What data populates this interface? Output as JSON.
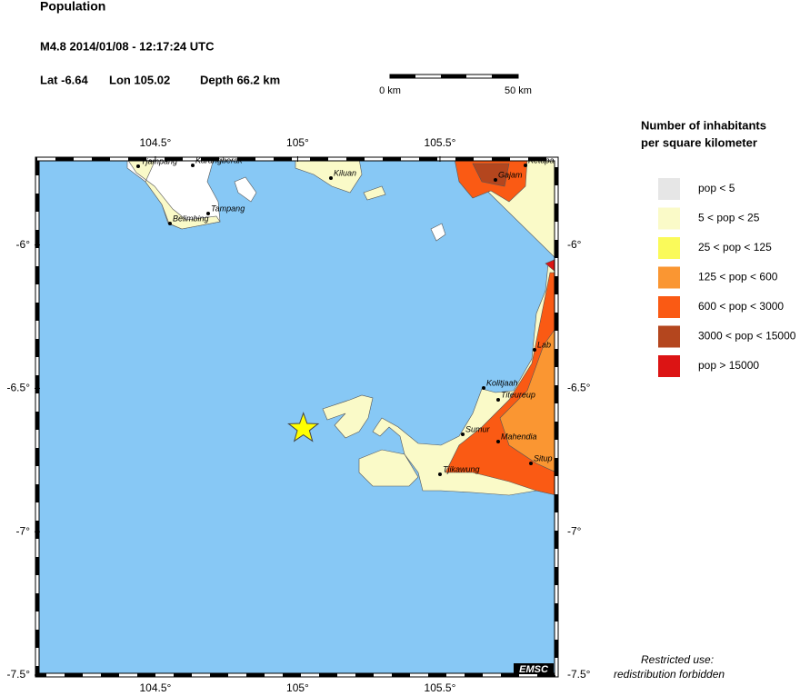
{
  "header": {
    "title": "Population",
    "event": "M4.8  2014/01/08 - 12:17:24 UTC",
    "lat": {
      "value": -6.64,
      "label": "Lat -6.64"
    },
    "lon": {
      "value": 105.02,
      "label": "Lon 105.02"
    },
    "depth": "Depth  66.2 km"
  },
  "scale": {
    "start": "0 km",
    "end": "50 km"
  },
  "map": {
    "xlim": [
      104.085,
      105.909
    ],
    "ylim": [
      -7.5,
      -5.7
    ],
    "xticks": [
      {
        "value": 104.5,
        "label": "104.5°"
      },
      {
        "value": 105,
        "label": "105°"
      },
      {
        "value": 105.5,
        "label": "105.5°"
      }
    ],
    "yticks": [
      {
        "value": -6,
        "label": "-6°"
      },
      {
        "value": -6.5,
        "label": "-6.5°"
      },
      {
        "value": -7,
        "label": "-7°"
      },
      {
        "value": -7.5,
        "label": "-7.5°"
      }
    ],
    "places": [
      "Tjampang",
      "Karangberak",
      "Kiluan",
      "Gajam",
      "Ketapa",
      "Tampang",
      "Belimbing",
      "Lab",
      "Kolitjaah",
      "Titeureup",
      "Sumur",
      "Mahendia",
      "Tjikawung",
      "Situp"
    ],
    "badge": "EMSC"
  },
  "legend": {
    "title": [
      "Number of inhabitants",
      "per square kilometer"
    ],
    "items": [
      {
        "label": "pop < 5",
        "color": "#e6e6e6"
      },
      {
        "label": "5 < pop < 25",
        "color": "#fafac8"
      },
      {
        "label": "25 < pop < 125",
        "color": "#fafa5a"
      },
      {
        "label": "125 < pop < 600",
        "color": "#fa9632"
      },
      {
        "label": "600 < pop < 3000",
        "color": "#fa5a14"
      },
      {
        "label": "3000 < pop < 15000",
        "color": "#b4461e"
      },
      {
        "label": "pop > 15000",
        "color": "#dc1414"
      }
    ]
  },
  "footer": [
    "Restricted use:",
    "redistribution forbidden"
  ]
}
